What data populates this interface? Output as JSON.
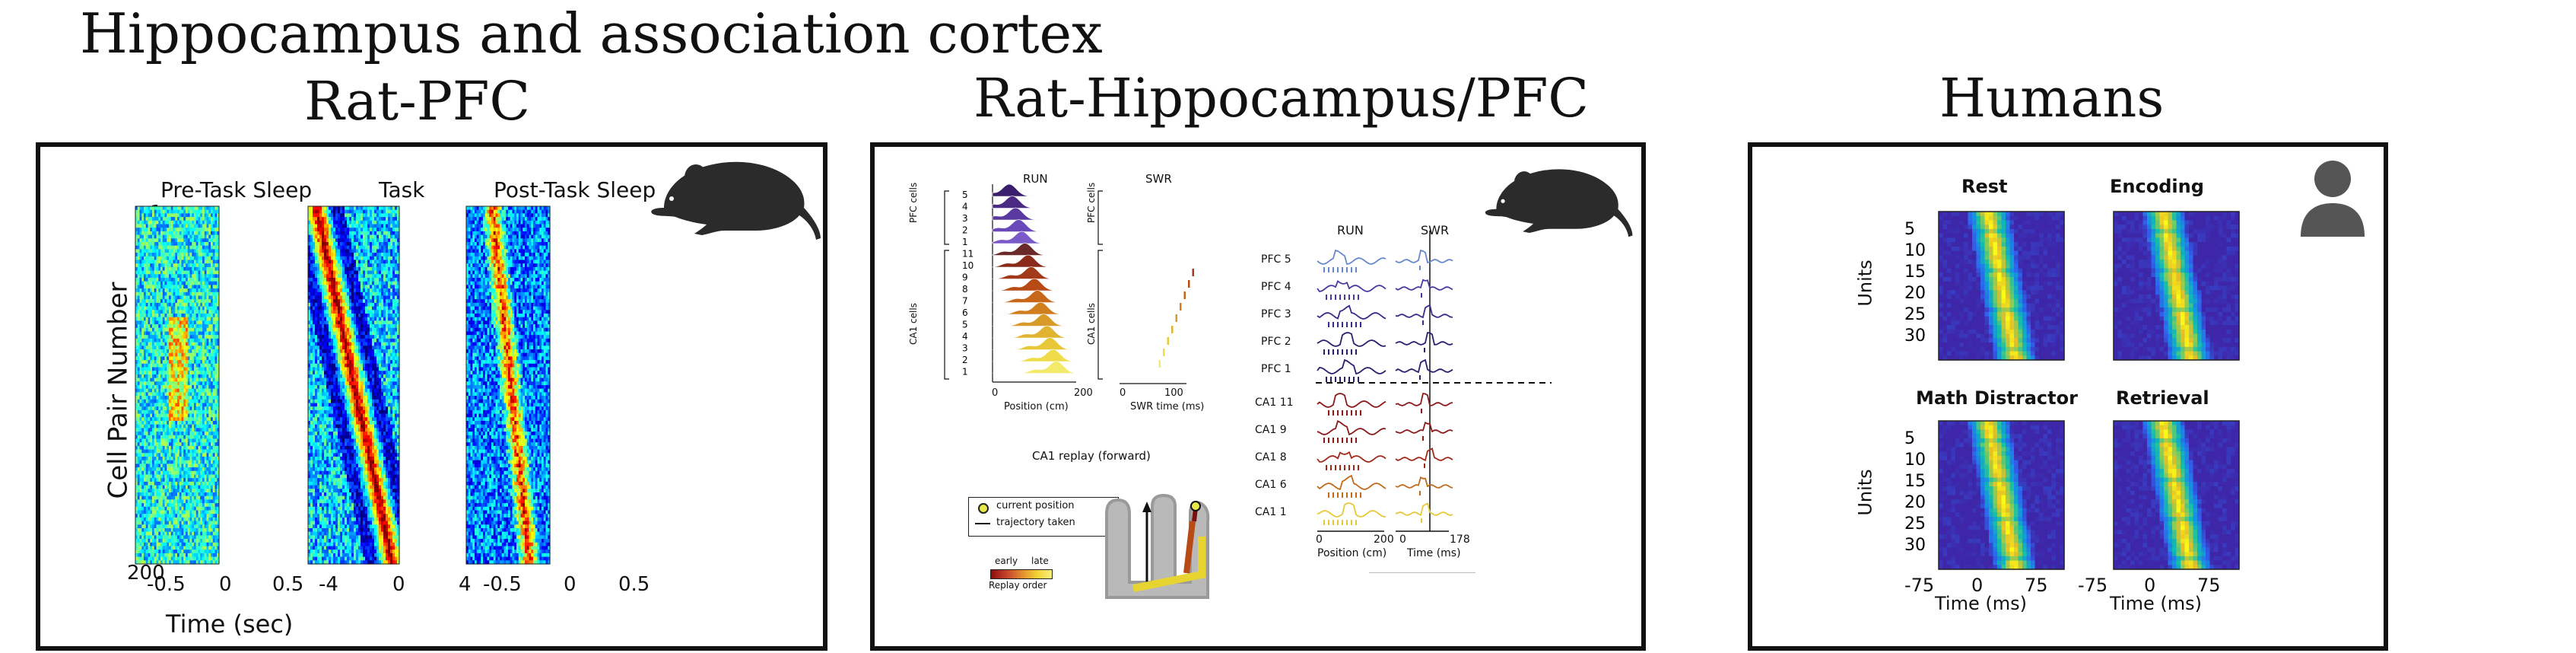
{
  "main_title": "Hippocampus and association cortex",
  "panels": {
    "rat_pfc": {
      "title": "Rat-PFC",
      "epochs": [
        "Pre-Task Sleep",
        "Task",
        "Post-Task Sleep"
      ],
      "ylabel": "Cell Pair Number",
      "xlabel": "Time (sec)",
      "y_top": "1",
      "y_bottom": "200",
      "xticks": [
        [
          "-0.5",
          "0",
          "0.5"
        ],
        [
          "-4",
          "0",
          "4"
        ],
        [
          "-0.5",
          "0",
          "0.5"
        ]
      ]
    },
    "rat_hpc_pfc": {
      "title": "Rat-Hippocampus/PFC",
      "left": {
        "run": "RUN",
        "swr": "SWR",
        "pfc_cells": "PFC cells",
        "ca1_cells": "CA1 cells",
        "row_labels": [
          "5",
          "4",
          "3",
          "2",
          "1",
          "11",
          "10",
          "9",
          "8",
          "7",
          "6",
          "5",
          "4",
          "3",
          "2",
          "1"
        ],
        "xlabel_run": "Position (cm)",
        "xticks_run": [
          "0",
          "200"
        ],
        "xlabel_swr": "SWR time (ms)",
        "xticks_swr": [
          "0",
          "100"
        ],
        "replay_title": "CA1 replay (forward)",
        "legend_current": "current position",
        "legend_trajectory": "trajectory taken",
        "early": "early",
        "late": "late",
        "replay_order": "Replay order"
      },
      "right": {
        "run": "RUN",
        "swr": "SWR",
        "rows": [
          "PFC 5",
          "PFC 4",
          "PFC 3",
          "PFC 2",
          "PFC 1",
          "CA1 11",
          "CA1 9",
          "CA1 8",
          "CA1 6",
          "CA1 1"
        ],
        "xlabel_run": "Position (cm)",
        "xticks_run": [
          "0",
          "200"
        ],
        "xlabel_swr": "Time (ms)",
        "xticks_swr": [
          "0",
          "178"
        ]
      }
    },
    "humans": {
      "title": "Humans",
      "heatmaps": [
        "Rest",
        "Encoding",
        "Math Distractor",
        "Retrieval"
      ],
      "ylabel": "Units",
      "yticks": [
        "5",
        "10",
        "15",
        "20",
        "25",
        "30"
      ],
      "xticks": [
        "-75",
        "0",
        "75"
      ],
      "xlabel": "Time (ms)"
    }
  },
  "colors": {
    "border": "#111111",
    "rat_silhouette": "#2b2b2b",
    "person_icon": "#555555",
    "parula_low": "#3e26a8",
    "parula_high": "#f9fb15",
    "jet_low": "#00008f",
    "jet_high": "#8f0000"
  },
  "icons": [
    "rat-icon",
    "rat-icon",
    "person-icon"
  ]
}
